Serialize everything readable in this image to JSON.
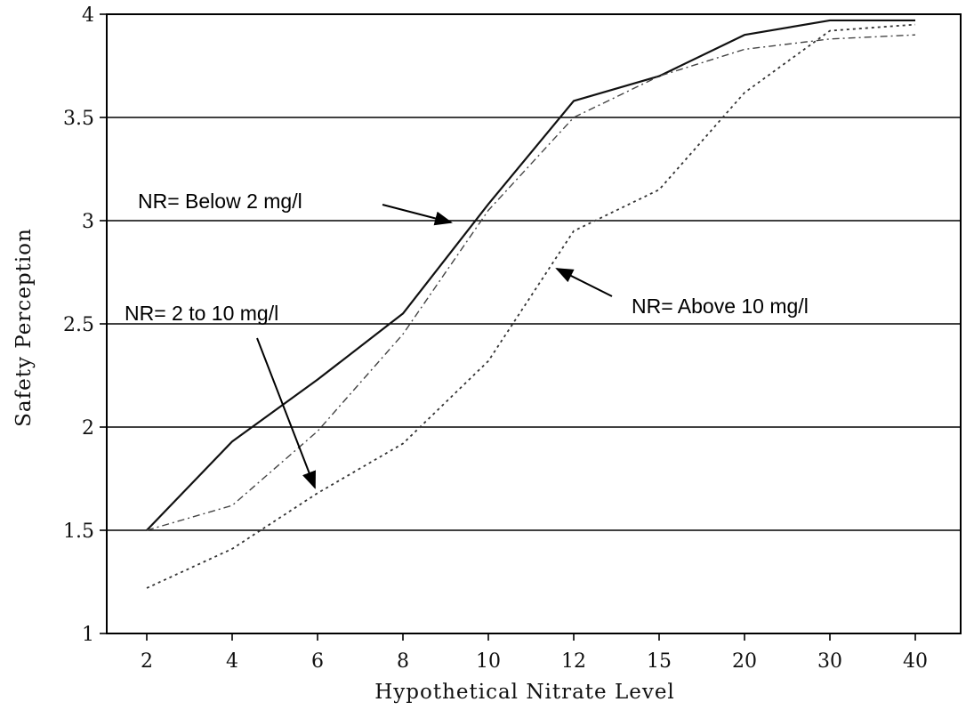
{
  "chart_data": {
    "type": "line",
    "title": "",
    "xlabel": "Hypothetical Nitrate Level",
    "ylabel": "Safety Perception",
    "categories": [
      "2",
      "4",
      "6",
      "8",
      "10",
      "12",
      "15",
      "20",
      "30",
      "40"
    ],
    "ylim": [
      1,
      4
    ],
    "yticks": [
      "1",
      "1.5",
      "2",
      "2.5",
      "3",
      "3.5",
      "4"
    ],
    "grid": "horizontal",
    "series": [
      {
        "key": "below2",
        "style": "solid",
        "color": "#111111",
        "values": [
          1.5,
          1.93,
          2.23,
          2.55,
          3.08,
          3.58,
          3.7,
          3.9,
          3.97,
          3.97
        ]
      },
      {
        "key": "two_to_ten",
        "style": "dashdot",
        "color": "#444444",
        "values": [
          1.5,
          1.62,
          1.98,
          2.45,
          3.05,
          3.5,
          3.7,
          3.83,
          3.88,
          3.9
        ]
      },
      {
        "key": "above10",
        "style": "dotted",
        "color": "#333333",
        "values": [
          1.22,
          1.41,
          1.68,
          1.92,
          2.32,
          2.95,
          3.15,
          3.62,
          3.92,
          3.95
        ]
      }
    ],
    "annotations": [
      {
        "key": "below2",
        "text": "NR= Below 2 mg/l"
      },
      {
        "key": "two_to_ten",
        "text": "NR= 2 to 10 mg/l"
      },
      {
        "key": "above10",
        "text": "NR= Above 10 mg/l"
      }
    ]
  }
}
